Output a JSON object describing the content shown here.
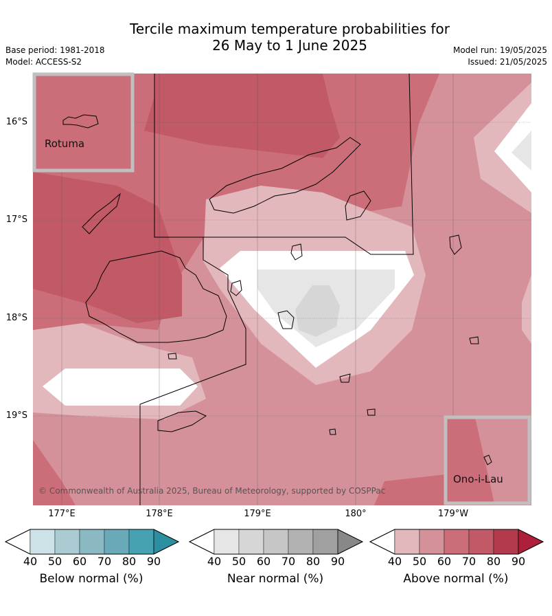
{
  "title": {
    "line1": "Tercile maximum temperature probabilities for",
    "line2": "26 May to 1 June 2025"
  },
  "meta": {
    "base_period": "Base period: 1981-2018",
    "model": "Model: ACCESS-S2",
    "model_run": "Model run: 19/05/2025",
    "issued": "Issued: 21/05/2025"
  },
  "map": {
    "latitude_labels": [
      "16°S",
      "17°S",
      "18°S",
      "19°S"
    ],
    "longitude_labels": [
      "177°E",
      "178°E",
      "179°E",
      "180°",
      "179°W"
    ],
    "inset_top_left": "Rotuma",
    "inset_bottom_right": "Ono-i-Lau",
    "copyright": "© Commonwealth of Australia 2025, Bureau of Meteorology, supported by COSPPac"
  },
  "legends": [
    {
      "title": "Below normal (%)",
      "ticks": [
        "40",
        "50",
        "60",
        "70",
        "80",
        "90"
      ],
      "colors": [
        "#ffffff",
        "#cde2e7",
        "#a9cbd1",
        "#8ab9c3",
        "#6aaab8",
        "#46a1b2",
        "#2b8fa1"
      ]
    },
    {
      "title": "Near normal (%)",
      "ticks": [
        "40",
        "50",
        "60",
        "70",
        "80",
        "90"
      ],
      "colors": [
        "#ffffff",
        "#e6e6e6",
        "#d6d6d6",
        "#c6c6c6",
        "#b2b2b2",
        "#a0a0a0",
        "#888888"
      ]
    },
    {
      "title": "Above normal (%)",
      "ticks": [
        "40",
        "50",
        "60",
        "70",
        "80",
        "90"
      ],
      "colors": [
        "#ffffff",
        "#e3b8bc",
        "#d4919a",
        "#cb6e79",
        "#c15966",
        "#b23a4c",
        "#ad1f3a"
      ]
    }
  ]
}
